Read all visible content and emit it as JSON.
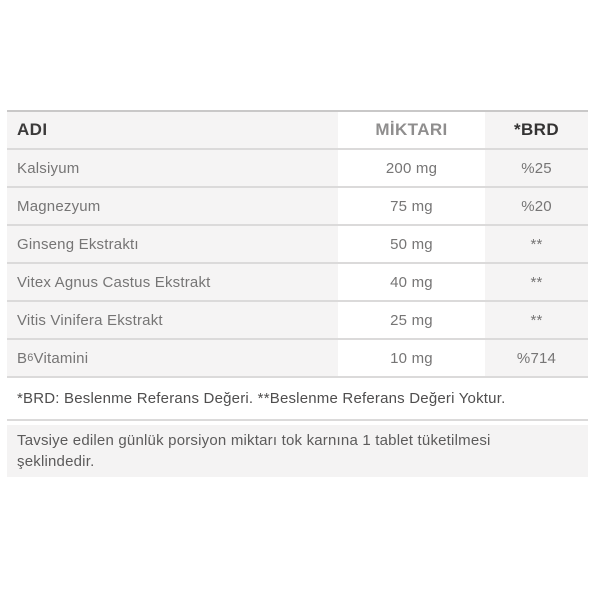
{
  "table": {
    "headers": {
      "name": "ADI",
      "amount": "MİKTARI",
      "brd": "*BRD"
    },
    "rows": [
      {
        "name": "Kalsiyum",
        "amount": "200 mg",
        "brd": "%25"
      },
      {
        "name": "Magnezyum",
        "amount": "75 mg",
        "brd": "%20"
      },
      {
        "name": "Ginseng Ekstraktı",
        "amount": "50 mg",
        "brd": "**"
      },
      {
        "name": "Vitex Agnus Castus Ekstrakt",
        "amount": "40 mg",
        "brd": "**"
      },
      {
        "name": "Vitis Vinifera Ekstrakt",
        "amount": "25 mg",
        "brd": "**"
      },
      {
        "name": "B6 Vitamini",
        "name_parts": {
          "base": "B",
          "sub": "6",
          "rest": " Vitamini"
        },
        "amount": "10 mg",
        "brd": "%714"
      }
    ],
    "footnote": "*BRD: Beslenme Referans Değeri. **Beslenme Referans Değeri Yoktur."
  },
  "usage_note": "Tavsiye edilen günlük porsiyon miktarı tok karnına 1 tablet tüketilmesi şeklindedir."
}
